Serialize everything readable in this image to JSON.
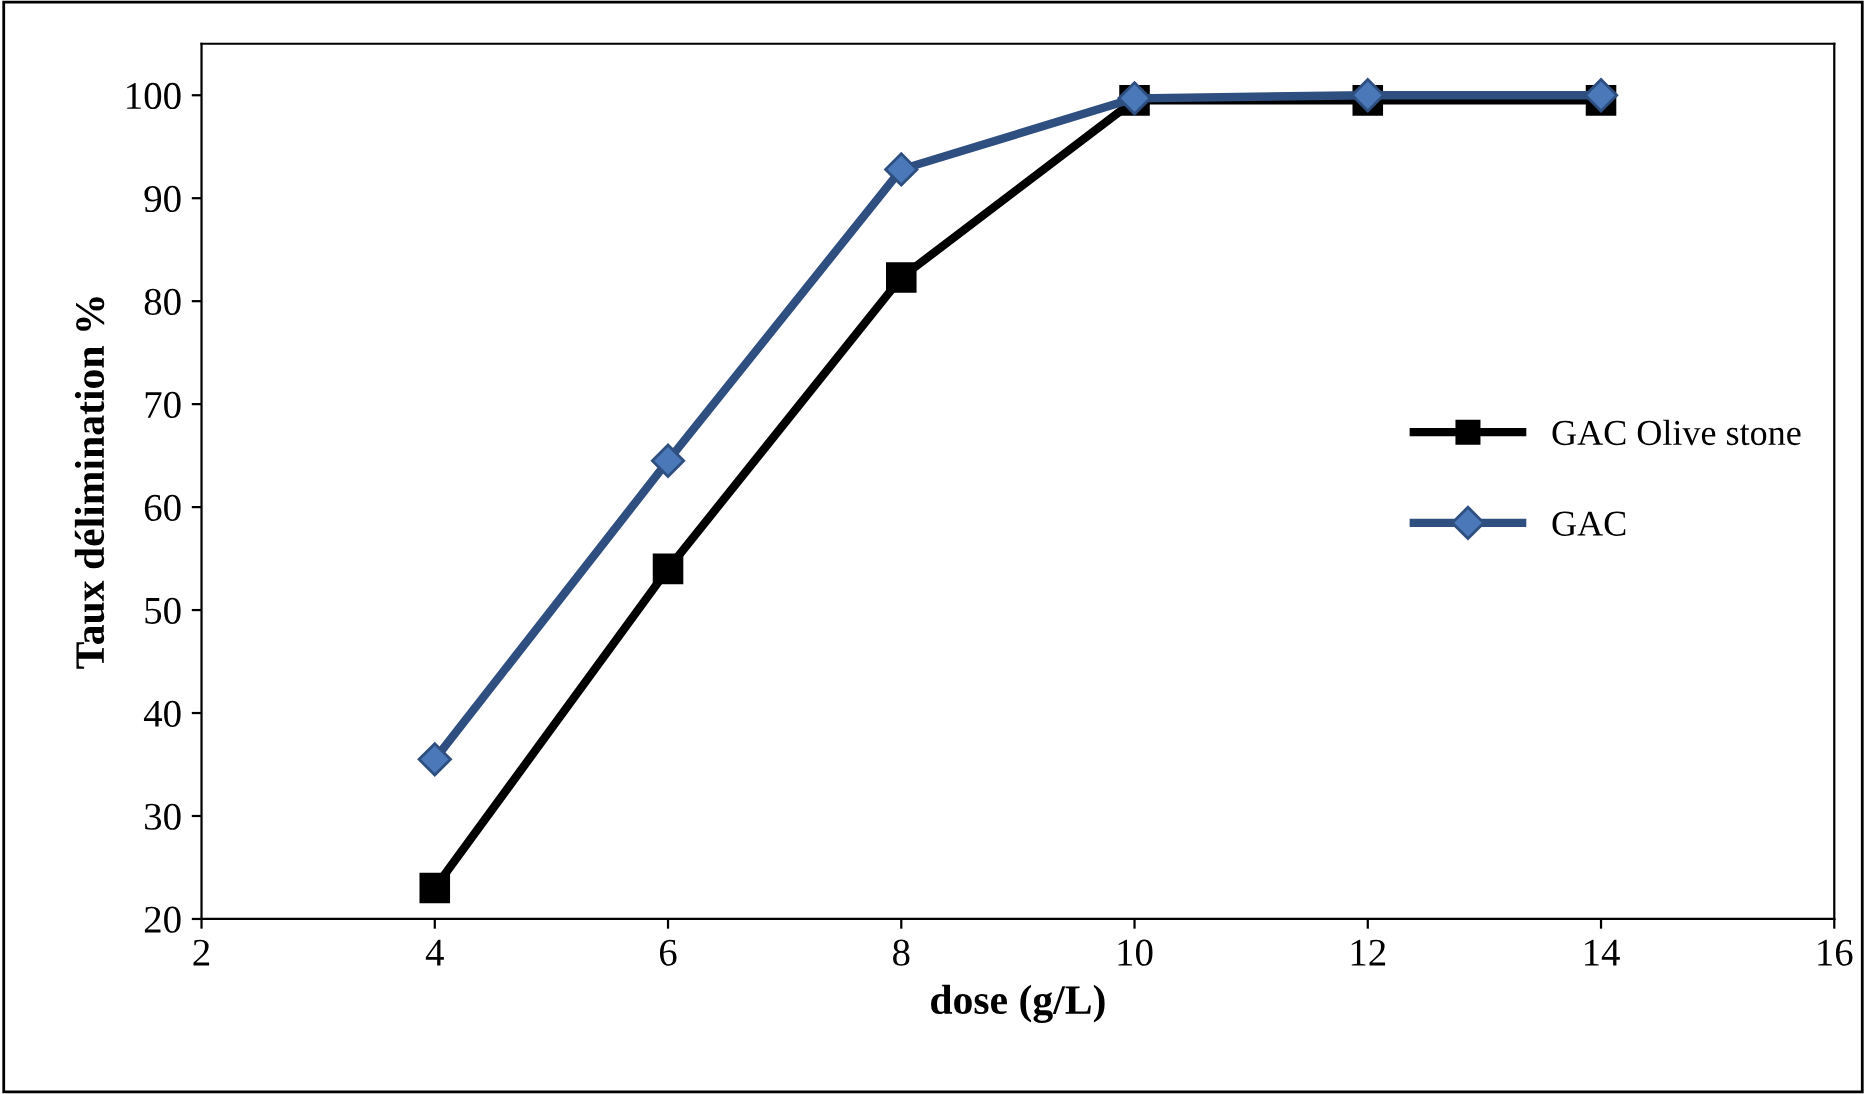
{
  "chart_data": {
    "type": "line",
    "xlabel": "dose (g/L)",
    "ylabel": "Taux délimination %",
    "x": [
      4,
      6,
      8,
      10,
      12,
      14
    ],
    "series": [
      {
        "name": "GAC Olive stone",
        "color": "#000000",
        "marker": "square",
        "values": [
          23,
          54,
          82.3,
          99.5,
          99.5,
          99.5
        ]
      },
      {
        "name": "GAC",
        "color": "#2e4f80",
        "marker": "diamond",
        "values": [
          35.5,
          64.5,
          92.8,
          99.7,
          100,
          100
        ]
      }
    ],
    "xlim": [
      2,
      16
    ],
    "xticks": [
      2,
      4,
      6,
      8,
      10,
      12,
      14,
      16
    ],
    "ylim": [
      20,
      105
    ],
    "yticks": [
      20,
      30,
      40,
      50,
      60,
      70,
      80,
      90,
      100
    ],
    "grid": false,
    "legend": "right",
    "line_style": "solid"
  }
}
